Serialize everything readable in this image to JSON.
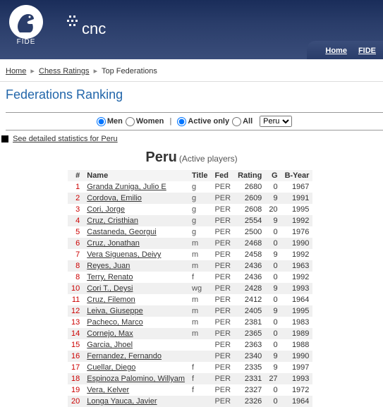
{
  "header": {
    "fide_label": "FIDE",
    "links": {
      "home": "Home",
      "fide": "FIDE"
    }
  },
  "breadcrumb": {
    "home": "Home",
    "ratings": "Chess Ratings",
    "top": "Top Federations"
  },
  "page_title": "Federations Ranking",
  "filters": {
    "men": "Men",
    "women": "Women",
    "active": "Active only",
    "all": "All",
    "gender_selected": "men",
    "activity_selected": "active",
    "country_selected": "Peru"
  },
  "stats_link": "See detailed statistics for Peru",
  "country": {
    "name": "Peru",
    "subtitle": "(Active players)"
  },
  "columns": {
    "rank": "#",
    "name": "Name",
    "title": "Title",
    "fed": "Fed",
    "rating": "Rating",
    "g": "G",
    "byear": "B-Year"
  },
  "players": [
    {
      "rank": 1,
      "name": "Granda Zuniga, Julio E",
      "title": "g",
      "fed": "PER",
      "rating": 2680,
      "g": 0,
      "byear": 1967
    },
    {
      "rank": 2,
      "name": "Cordova, Emilio",
      "title": "g",
      "fed": "PER",
      "rating": 2609,
      "g": 9,
      "byear": 1991
    },
    {
      "rank": 3,
      "name": "Cori, Jorge",
      "title": "g",
      "fed": "PER",
      "rating": 2608,
      "g": 20,
      "byear": 1995
    },
    {
      "rank": 4,
      "name": "Cruz, Cristhian",
      "title": "g",
      "fed": "PER",
      "rating": 2554,
      "g": 9,
      "byear": 1992
    },
    {
      "rank": 5,
      "name": "Castaneda, Georgui",
      "title": "g",
      "fed": "PER",
      "rating": 2500,
      "g": 0,
      "byear": 1976
    },
    {
      "rank": 6,
      "name": "Cruz, Jonathan",
      "title": "m",
      "fed": "PER",
      "rating": 2468,
      "g": 0,
      "byear": 1990
    },
    {
      "rank": 7,
      "name": "Vera Siguenas, Deivy",
      "title": "m",
      "fed": "PER",
      "rating": 2458,
      "g": 9,
      "byear": 1992
    },
    {
      "rank": 8,
      "name": "Reyes, Juan",
      "title": "m",
      "fed": "PER",
      "rating": 2436,
      "g": 0,
      "byear": 1963
    },
    {
      "rank": 8,
      "name": "Terry, Renato",
      "title": "f",
      "fed": "PER",
      "rating": 2436,
      "g": 0,
      "byear": 1992
    },
    {
      "rank": 10,
      "name": "Cori T., Deysi",
      "title": "wg",
      "fed": "PER",
      "rating": 2428,
      "g": 9,
      "byear": 1993
    },
    {
      "rank": 11,
      "name": "Cruz, Filemon",
      "title": "m",
      "fed": "PER",
      "rating": 2412,
      "g": 0,
      "byear": 1964
    },
    {
      "rank": 12,
      "name": "Leiva, Giuseppe",
      "title": "m",
      "fed": "PER",
      "rating": 2405,
      "g": 9,
      "byear": 1995
    },
    {
      "rank": 13,
      "name": "Pacheco, Marco",
      "title": "m",
      "fed": "PER",
      "rating": 2381,
      "g": 0,
      "byear": 1983
    },
    {
      "rank": 14,
      "name": "Cornejo, Max",
      "title": "m",
      "fed": "PER",
      "rating": 2365,
      "g": 0,
      "byear": 1989
    },
    {
      "rank": 15,
      "name": "Garcia, Jhoel",
      "title": "",
      "fed": "PER",
      "rating": 2363,
      "g": 0,
      "byear": 1988
    },
    {
      "rank": 16,
      "name": "Fernandez, Fernando",
      "title": "",
      "fed": "PER",
      "rating": 2340,
      "g": 9,
      "byear": 1990
    },
    {
      "rank": 17,
      "name": "Cuellar, Diego",
      "title": "f",
      "fed": "PER",
      "rating": 2335,
      "g": 9,
      "byear": 1997
    },
    {
      "rank": 18,
      "name": "Espinoza Palomino, Willyam",
      "title": "f",
      "fed": "PER",
      "rating": 2331,
      "g": 27,
      "byear": 1993
    },
    {
      "rank": 19,
      "name": "Vera, Kelver",
      "title": "f",
      "fed": "PER",
      "rating": 2327,
      "g": 0,
      "byear": 1972
    },
    {
      "rank": 20,
      "name": "Longa Yauca, Javier",
      "title": "",
      "fed": "PER",
      "rating": 2326,
      "g": 0,
      "byear": 1964
    }
  ],
  "styling": {
    "header_gradient_top": "#1a2d5a",
    "header_gradient_bottom": "#3a4d7a",
    "page_title_color": "#2266aa",
    "rank_color": "#cc0000",
    "alt_row_bg": "#f0f0f0",
    "link_color": "#333333"
  }
}
